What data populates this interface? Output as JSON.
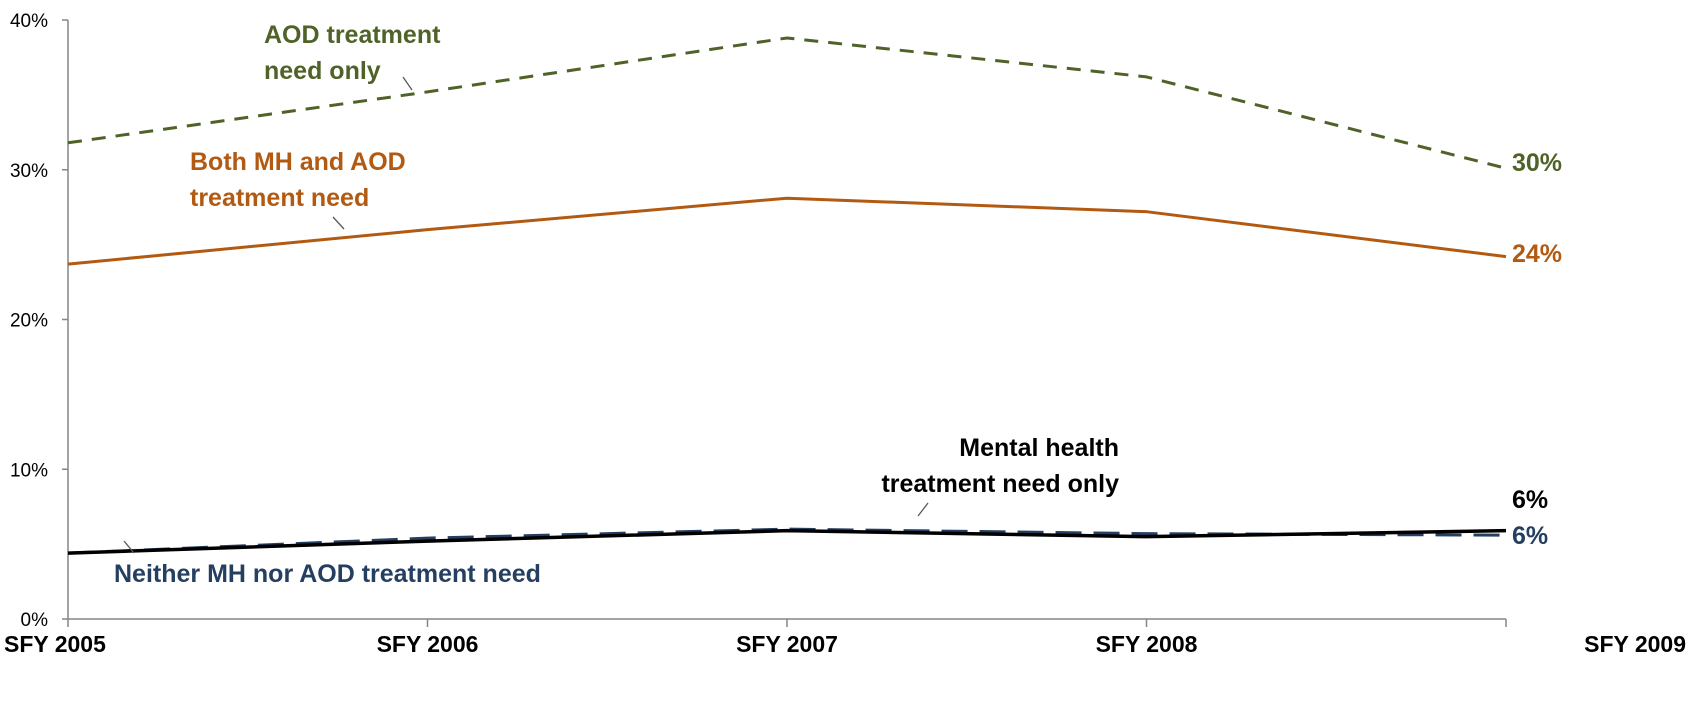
{
  "chart_data": {
    "type": "line",
    "categories": [
      "SFY 2005",
      "SFY 2006",
      "SFY 2007",
      "SFY 2008",
      "SFY 2009"
    ],
    "y_tick_labels": [
      "0%",
      "10%",
      "20%",
      "30%",
      "40%"
    ],
    "ylim": [
      0,
      40
    ],
    "grid": false,
    "series": [
      {
        "key": "aod",
        "name_lines": [
          "AOD treatment",
          "need only"
        ],
        "values": [
          31.8,
          35.2,
          38.8,
          36.2,
          30.1
        ],
        "end_label": "30%",
        "color": "#4f6228",
        "dash": "dashed"
      },
      {
        "key": "both",
        "name_lines": [
          "Both MH and AOD",
          "treatment need"
        ],
        "values": [
          23.7,
          26.0,
          28.1,
          27.2,
          24.2
        ],
        "end_label": "24%",
        "color": "#b35a12",
        "dash": "solid"
      },
      {
        "key": "neither",
        "name_lines": [
          "Neither MH nor AOD treatment need"
        ],
        "values": [
          4.4,
          5.4,
          6.0,
          5.7,
          5.6
        ],
        "end_label": "6%",
        "color": "#243f60",
        "dash": "long-dash"
      },
      {
        "key": "mh",
        "name_lines": [
          "Mental health",
          "treatment need only"
        ],
        "values": [
          4.4,
          5.2,
          5.9,
          5.5,
          5.9
        ],
        "end_label": "6%",
        "color": "#000000",
        "dash": "solid"
      }
    ]
  }
}
